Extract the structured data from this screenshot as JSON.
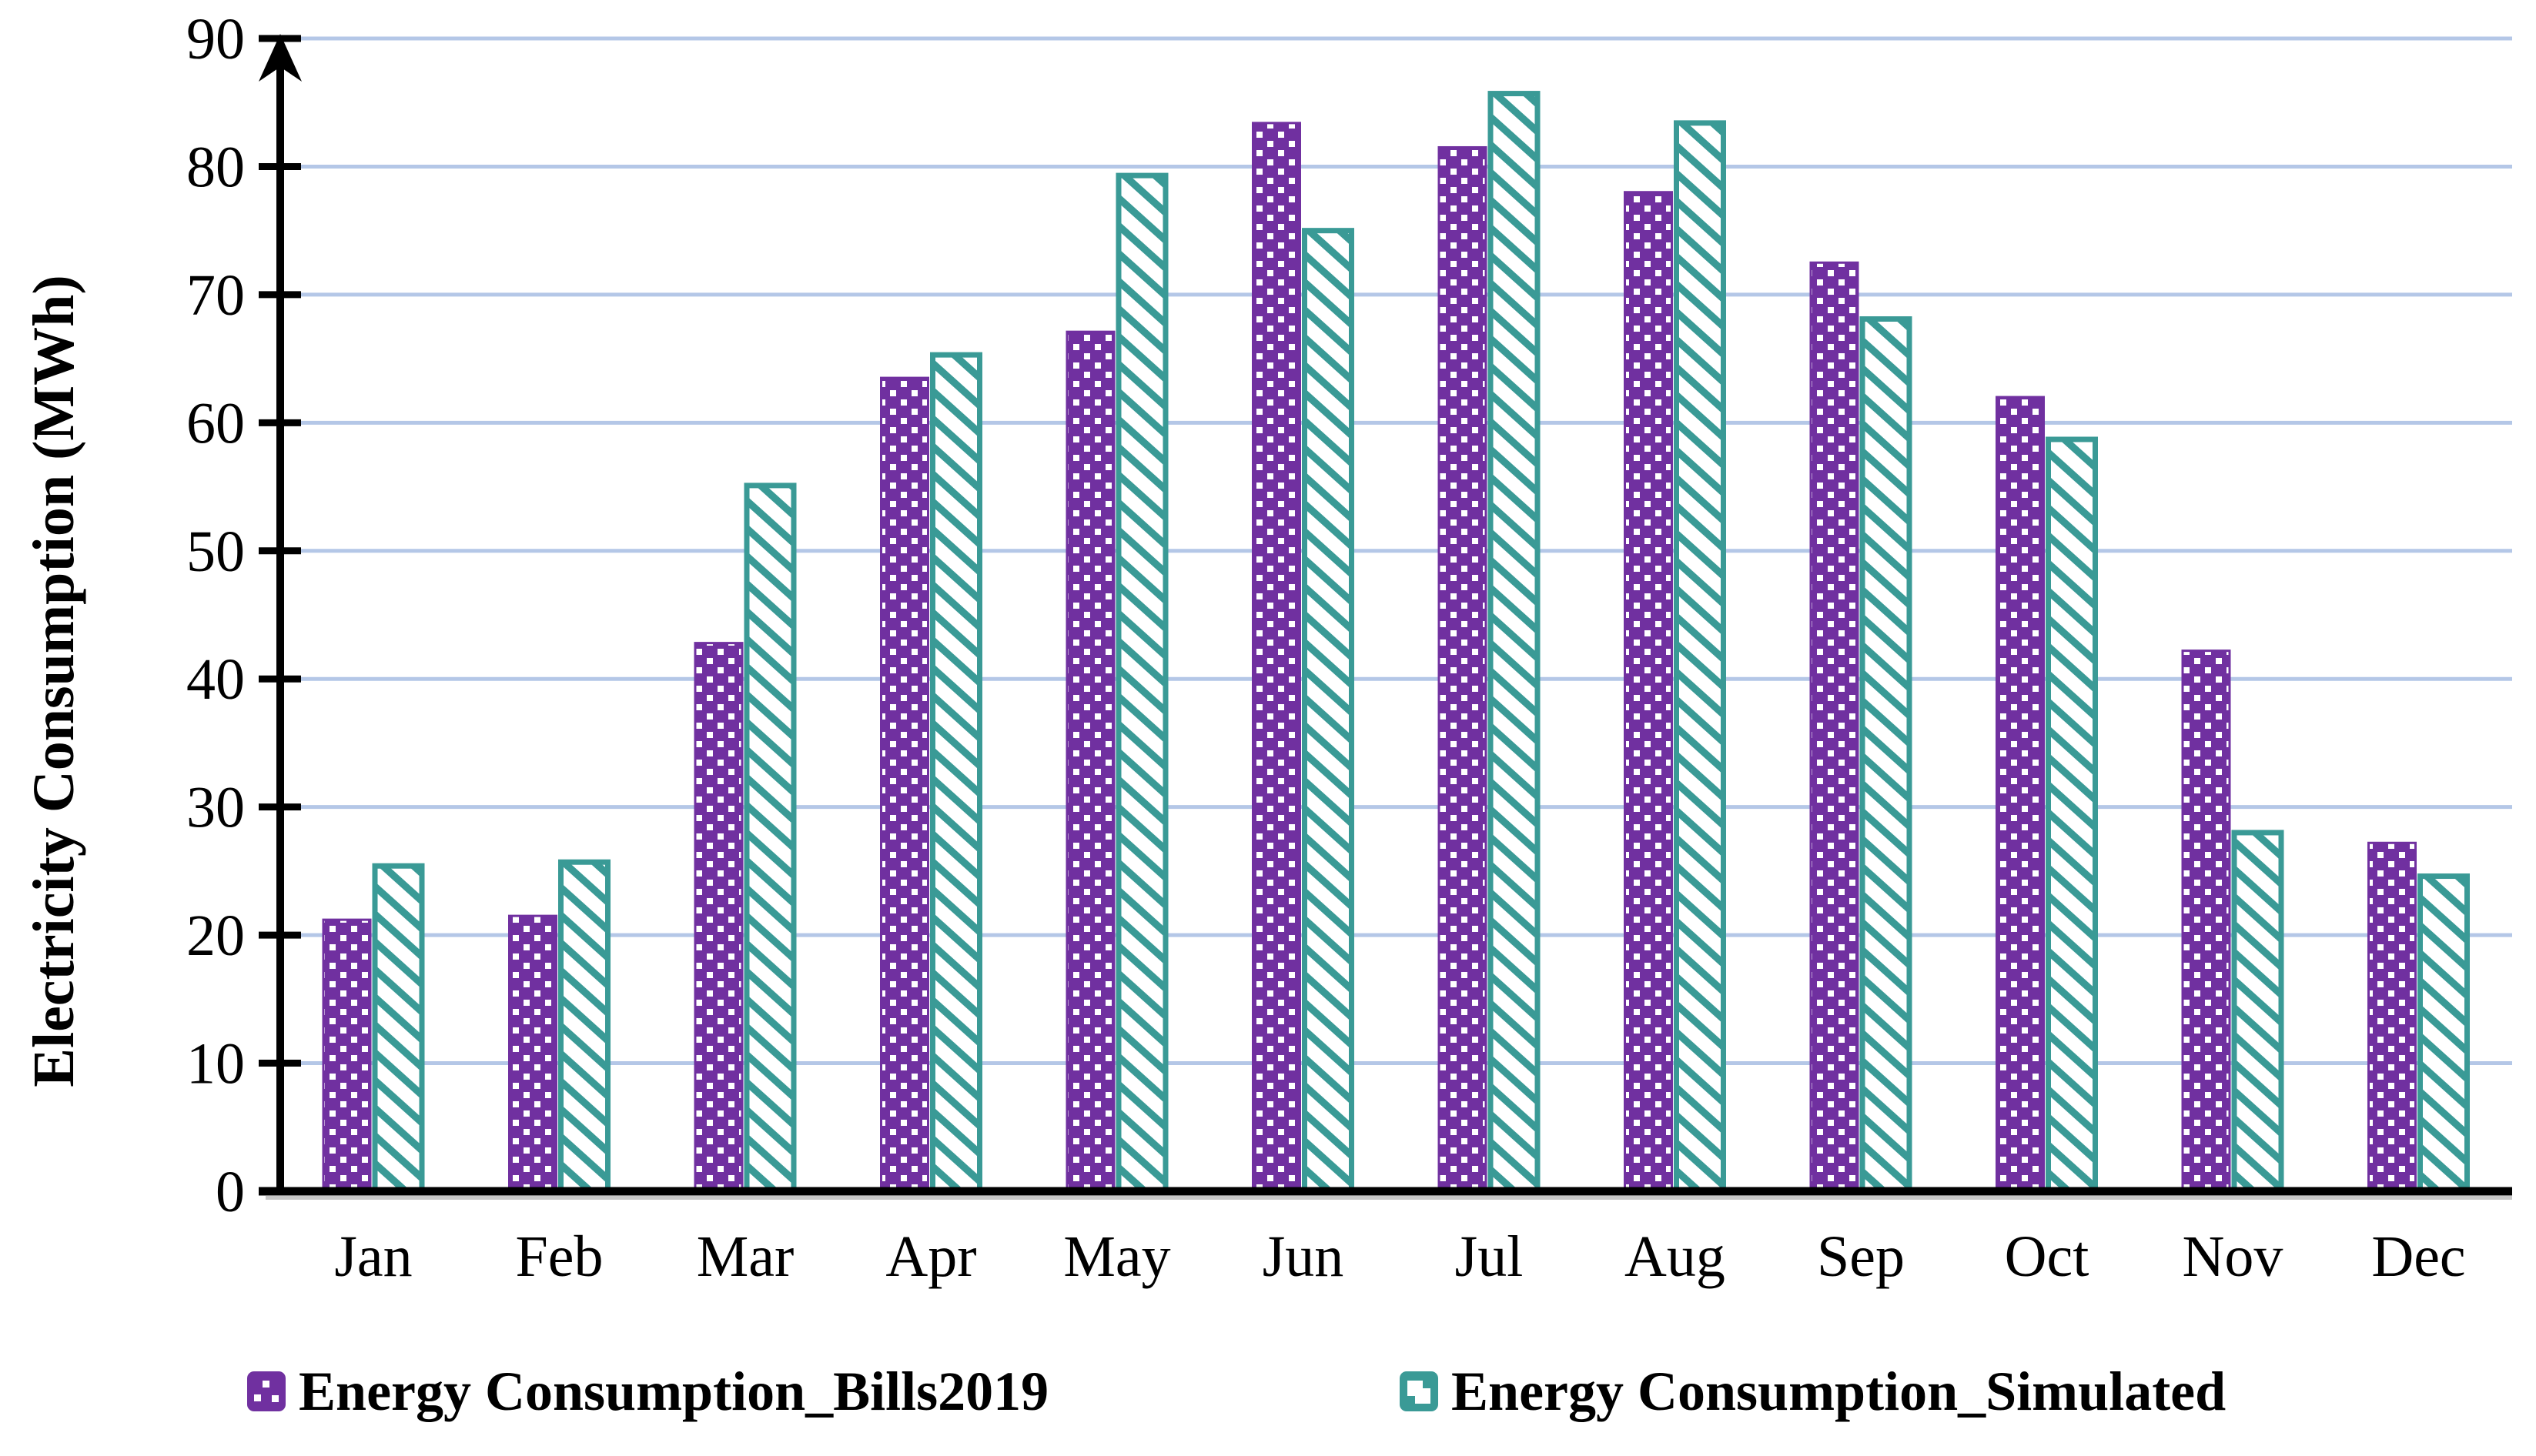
{
  "chart_data": {
    "type": "bar",
    "title": "",
    "xlabel": "",
    "ylabel": "Electricity Consumption (MWh)",
    "categories": [
      "Jan",
      "Feb",
      "Mar",
      "Apr",
      "May",
      "Jun",
      "Jul",
      "Aug",
      "Sep",
      "Oct",
      "Nov",
      "Dec"
    ],
    "series": [
      {
        "name": "Energy Consumption_Bills2019",
        "color": "#7030A0",
        "pattern": "dots",
        "values": [
          21.2,
          21.5,
          42.8,
          63.5,
          67.1,
          83.4,
          81.5,
          78.0,
          72.5,
          62.0,
          42.2,
          27.2
        ]
      },
      {
        "name": "Energy Consumption_Simulated",
        "color": "#3A9A96",
        "pattern": "diagonal-stripes",
        "values": [
          25.4,
          25.7,
          55.1,
          65.3,
          79.3,
          75.0,
          85.7,
          83.4,
          68.1,
          58.7,
          28.0,
          24.6
        ]
      }
    ],
    "ylim": [
      0,
      90
    ],
    "yticks": [
      0,
      10,
      20,
      30,
      40,
      50,
      60,
      70,
      80,
      90
    ],
    "grid": "horizontal",
    "gridline_color": "#B4C7E7",
    "axis_color": "#000000",
    "axis_arrow": "up",
    "legend_position": "bottom"
  }
}
